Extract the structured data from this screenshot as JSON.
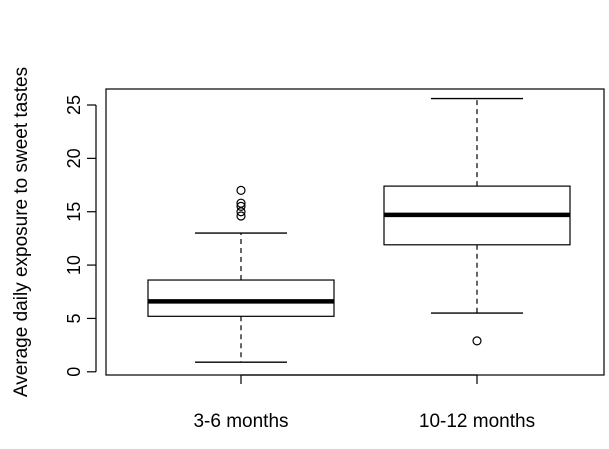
{
  "chart_data": {
    "type": "boxplot",
    "title": "",
    "xlabel": "",
    "ylabel": "Average daily exposure to sweet tastes",
    "ylim": [
      -0.3,
      26.5
    ],
    "yticks": [
      0,
      5,
      10,
      15,
      20,
      25
    ],
    "grid": false,
    "legend": "none",
    "categories": [
      "3-6 months",
      "10-12 months"
    ],
    "boxes": [
      {
        "category": "3-6 months",
        "whisker_low": 0.9,
        "q1": 5.2,
        "median": 6.6,
        "q3": 8.6,
        "whisker_high": 13.0,
        "outliers": [
          14.6,
          15.0,
          15.5,
          15.8,
          17.0
        ]
      },
      {
        "category": "10-12 months",
        "whisker_low": 5.5,
        "q1": 11.9,
        "median": 14.7,
        "q3": 17.4,
        "whisker_high": 25.6,
        "outliers": [
          2.9
        ]
      }
    ],
    "colors": {
      "stroke": "#000000",
      "median": "#000000",
      "background": "#ffffff"
    }
  }
}
